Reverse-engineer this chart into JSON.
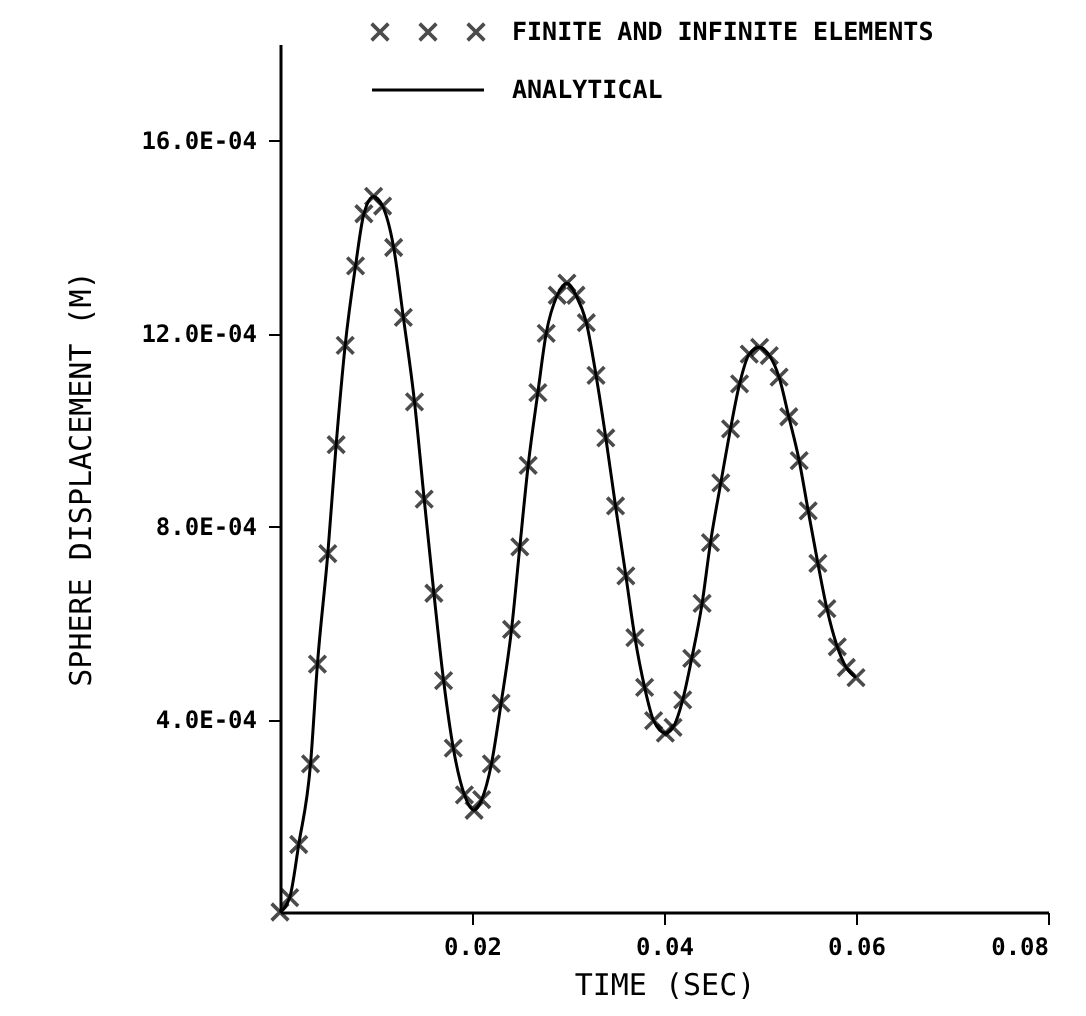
{
  "chart_data": {
    "type": "line",
    "xlabel": "TIME (SEC)",
    "ylabel": "SPHERE DISPLACEMENT (M)",
    "x": [
      0,
      0.00101,
      0.00195,
      0.00318,
      0.0039,
      0.00498,
      0.00585,
      0.00679,
      0.00787,
      0.00874,
      0.00975,
      0.01069,
      0.01184,
      0.01285,
      0.01401,
      0.01502,
      0.01603,
      0.01704,
      0.01805,
      0.01921,
      0.02022,
      0.02101,
      0.02202,
      0.02303,
      0.02412,
      0.02498,
      0.02585,
      0.02686,
      0.02773,
      0.02888,
      0.02989,
      0.03083,
      0.03191,
      0.03292,
      0.03394,
      0.03495,
      0.03603,
      0.03697,
      0.03798,
      0.03892,
      0.04014,
      0.04094,
      0.04195,
      0.04289,
      0.04397,
      0.04484,
      0.04592,
      0.04693,
      0.04787,
      0.04888,
      0.04996,
      0.05097,
      0.05199,
      0.053,
      0.05408,
      0.05502,
      0.05603,
      0.05697,
      0.05805,
      0.05899,
      0.06
    ],
    "series": [
      {
        "name": "FINITE AND INFINITE ELEMENTS",
        "type": "scatter",
        "marker": "cross",
        "color": "#000000",
        "values": [
          0,
          3e-05,
          0.00014,
          0.000307,
          0.000514,
          0.000743,
          0.000969,
          0.001175,
          0.00134,
          0.001448,
          0.001484,
          0.001464,
          0.001378,
          0.001233,
          0.001058,
          0.000856,
          0.000661,
          0.00048,
          0.00034,
          0.000243,
          0.000211,
          0.000233,
          0.000307,
          0.000433,
          0.000586,
          0.000757,
          0.000926,
          0.001077,
          0.0012,
          0.001279,
          0.001304,
          0.001279,
          0.001222,
          0.001113,
          0.000983,
          0.000842,
          0.000697,
          0.000569,
          0.000466,
          0.000397,
          0.000371,
          0.000383,
          0.00044,
          0.000526,
          0.00064,
          0.000766,
          0.00089,
          0.001002,
          0.001095,
          0.001157,
          0.001171,
          0.001154,
          0.001109,
          0.001027,
          0.000936,
          0.000832,
          0.000723,
          0.000629,
          0.00055,
          0.000507,
          0.000486
        ]
      },
      {
        "name": "ANALYTICAL",
        "type": "line",
        "marker": "none",
        "line_style": "solid",
        "color": "#000000",
        "values": [
          0,
          3e-05,
          0.00014,
          0.000307,
          0.000514,
          0.000743,
          0.000969,
          0.001175,
          0.00134,
          0.001448,
          0.001484,
          0.001464,
          0.001378,
          0.001233,
          0.001058,
          0.000856,
          0.000661,
          0.00048,
          0.00034,
          0.000243,
          0.000211,
          0.000233,
          0.000307,
          0.000433,
          0.000586,
          0.000757,
          0.000926,
          0.001077,
          0.0012,
          0.001279,
          0.001304,
          0.001279,
          0.001222,
          0.001113,
          0.000983,
          0.000842,
          0.000697,
          0.000569,
          0.000466,
          0.000397,
          0.000371,
          0.000383,
          0.00044,
          0.000526,
          0.00064,
          0.000766,
          0.00089,
          0.001002,
          0.001095,
          0.001157,
          0.001171,
          0.001154,
          0.001109,
          0.001027,
          0.000936,
          0.000832,
          0.000723,
          0.000629,
          0.00055,
          0.000507,
          0.000486
        ]
      }
    ],
    "xlim": [
      0,
      0.08
    ],
    "xticks": [
      {
        "value": 0.02,
        "label": "0.02"
      },
      {
        "value": 0.04,
        "label": "0.04"
      },
      {
        "value": 0.06,
        "label": "0.06"
      },
      {
        "value": 0.08,
        "label": "0.08"
      }
    ],
    "ylim": [
      0,
      0.0018
    ],
    "yticks": [
      {
        "value": 0.0004,
        "label": "4.0E-04"
      },
      {
        "value": 0.0008,
        "label": "8.0E-04"
      },
      {
        "value": 0.0012,
        "label": "12.0E-04"
      },
      {
        "value": 0.0016,
        "label": "16.0E-04"
      }
    ],
    "grid": false,
    "legend": "top"
  }
}
